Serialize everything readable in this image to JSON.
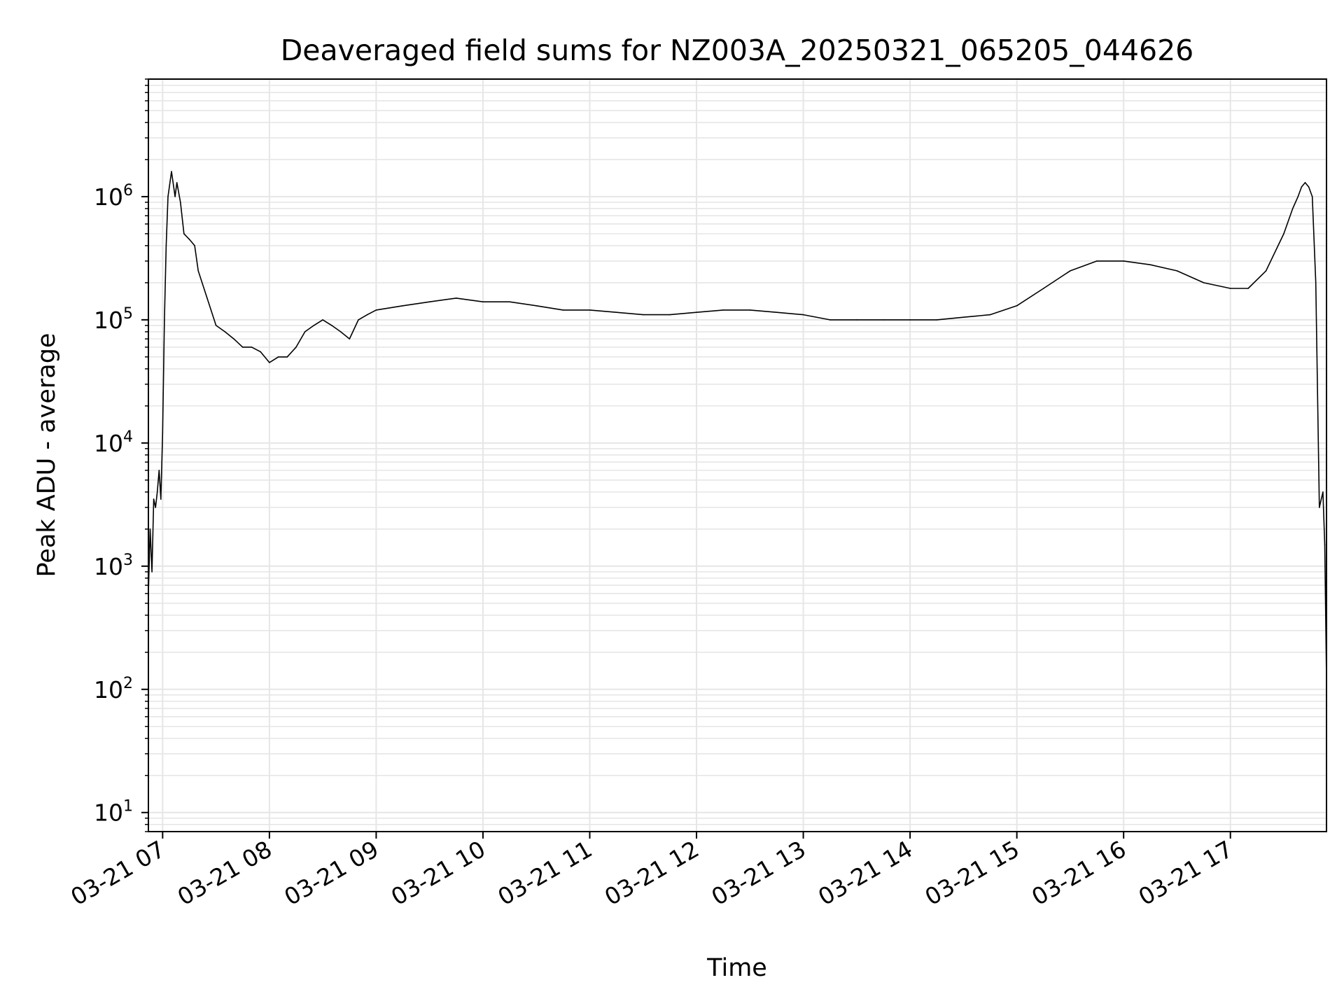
{
  "chart_data": {
    "type": "line",
    "title": "Deaveraged field sums for NZ003A_20250321_065205_044626",
    "xlabel": "Time",
    "ylabel": "Peak ADU - average",
    "yscale": "log",
    "ylim": [
      7,
      9000000
    ],
    "xlim": [
      "2025-03-21 06:52",
      "2025-03-21 17:54"
    ],
    "grid": true,
    "legend": "none",
    "line_color": "#000000",
    "x_ticks": [
      {
        "label": "03-21 07",
        "value": "2025-03-21 07:00"
      },
      {
        "label": "03-21 08",
        "value": "2025-03-21 08:00"
      },
      {
        "label": "03-21 09",
        "value": "2025-03-21 09:00"
      },
      {
        "label": "03-21 10",
        "value": "2025-03-21 10:00"
      },
      {
        "label": "03-21 11",
        "value": "2025-03-21 11:00"
      },
      {
        "label": "03-21 12",
        "value": "2025-03-21 12:00"
      },
      {
        "label": "03-21 13",
        "value": "2025-03-21 13:00"
      },
      {
        "label": "03-21 14",
        "value": "2025-03-21 14:00"
      },
      {
        "label": "03-21 15",
        "value": "2025-03-21 15:00"
      },
      {
        "label": "03-21 16",
        "value": "2025-03-21 16:00"
      },
      {
        "label": "03-21 17",
        "value": "2025-03-21 17:00"
      }
    ],
    "y_ticks": [
      {
        "base": "10",
        "exp": "1",
        "value": 10
      },
      {
        "base": "10",
        "exp": "2",
        "value": 100
      },
      {
        "base": "10",
        "exp": "3",
        "value": 1000
      },
      {
        "base": "10",
        "exp": "4",
        "value": 10000
      },
      {
        "base": "10",
        "exp": "5",
        "value": 100000
      },
      {
        "base": "10",
        "exp": "6",
        "value": 1000000
      }
    ],
    "series": [
      {
        "x": [
          "2025-03-21 06:52",
          "2025-03-21 06:53",
          "2025-03-21 06:54",
          "2025-03-21 06:55",
          "2025-03-21 06:56",
          "2025-03-21 06:57",
          "2025-03-21 06:58",
          "2025-03-21 06:59",
          "2025-03-21 07:00",
          "2025-03-21 07:01",
          "2025-03-21 07:02",
          "2025-03-21 07:03",
          "2025-03-21 07:05",
          "2025-03-21 07:07",
          "2025-03-21 07:08",
          "2025-03-21 07:10",
          "2025-03-21 07:12",
          "2025-03-21 07:15",
          "2025-03-21 07:18",
          "2025-03-21 07:20",
          "2025-03-21 07:25",
          "2025-03-21 07:30",
          "2025-03-21 07:35",
          "2025-03-21 07:40",
          "2025-03-21 07:45",
          "2025-03-21 07:50",
          "2025-03-21 07:55",
          "2025-03-21 08:00",
          "2025-03-21 08:05",
          "2025-03-21 08:10",
          "2025-03-21 08:15",
          "2025-03-21 08:20",
          "2025-03-21 08:25",
          "2025-03-21 08:30",
          "2025-03-21 08:35",
          "2025-03-21 08:40",
          "2025-03-21 08:45",
          "2025-03-21 08:50",
          "2025-03-21 08:55",
          "2025-03-21 09:00",
          "2025-03-21 09:15",
          "2025-03-21 09:30",
          "2025-03-21 09:45",
          "2025-03-21 10:00",
          "2025-03-21 10:15",
          "2025-03-21 10:30",
          "2025-03-21 10:45",
          "2025-03-21 11:00",
          "2025-03-21 11:15",
          "2025-03-21 11:30",
          "2025-03-21 11:45",
          "2025-03-21 12:00",
          "2025-03-21 12:15",
          "2025-03-21 12:30",
          "2025-03-21 12:45",
          "2025-03-21 13:00",
          "2025-03-21 13:15",
          "2025-03-21 13:30",
          "2025-03-21 13:45",
          "2025-03-21 14:00",
          "2025-03-21 14:15",
          "2025-03-21 14:30",
          "2025-03-21 14:45",
          "2025-03-21 15:00",
          "2025-03-21 15:15",
          "2025-03-21 15:30",
          "2025-03-21 15:45",
          "2025-03-21 16:00",
          "2025-03-21 16:15",
          "2025-03-21 16:30",
          "2025-03-21 16:45",
          "2025-03-21 17:00",
          "2025-03-21 17:10",
          "2025-03-21 17:20",
          "2025-03-21 17:30",
          "2025-03-21 17:35",
          "2025-03-21 17:38",
          "2025-03-21 17:40",
          "2025-03-21 17:42",
          "2025-03-21 17:44",
          "2025-03-21 17:46",
          "2025-03-21 17:48",
          "2025-03-21 17:50",
          "2025-03-21 17:52",
          "2025-03-21 17:53",
          "2025-03-21 17:54"
        ],
        "y": [
          600,
          2000,
          900,
          3500,
          3000,
          4000,
          6000,
          3500,
          12000,
          100000,
          400000,
          1000000,
          1600000,
          1000000,
          1300000,
          900000,
          500000,
          450000,
          400000,
          250000,
          150000,
          90000,
          80000,
          70000,
          60000,
          60000,
          55000,
          45000,
          50000,
          50000,
          60000,
          80000,
          90000,
          100000,
          90000,
          80000,
          70000,
          100000,
          110000,
          120000,
          130000,
          140000,
          150000,
          140000,
          140000,
          130000,
          120000,
          120000,
          115000,
          110000,
          110000,
          115000,
          120000,
          120000,
          115000,
          110000,
          100000,
          100000,
          100000,
          100000,
          100000,
          105000,
          110000,
          130000,
          180000,
          250000,
          300000,
          300000,
          280000,
          250000,
          200000,
          180000,
          180000,
          250000,
          500000,
          800000,
          1000000,
          1200000,
          1300000,
          1200000,
          1000000,
          200000,
          3000,
          4000,
          1500,
          120
        ]
      }
    ]
  }
}
